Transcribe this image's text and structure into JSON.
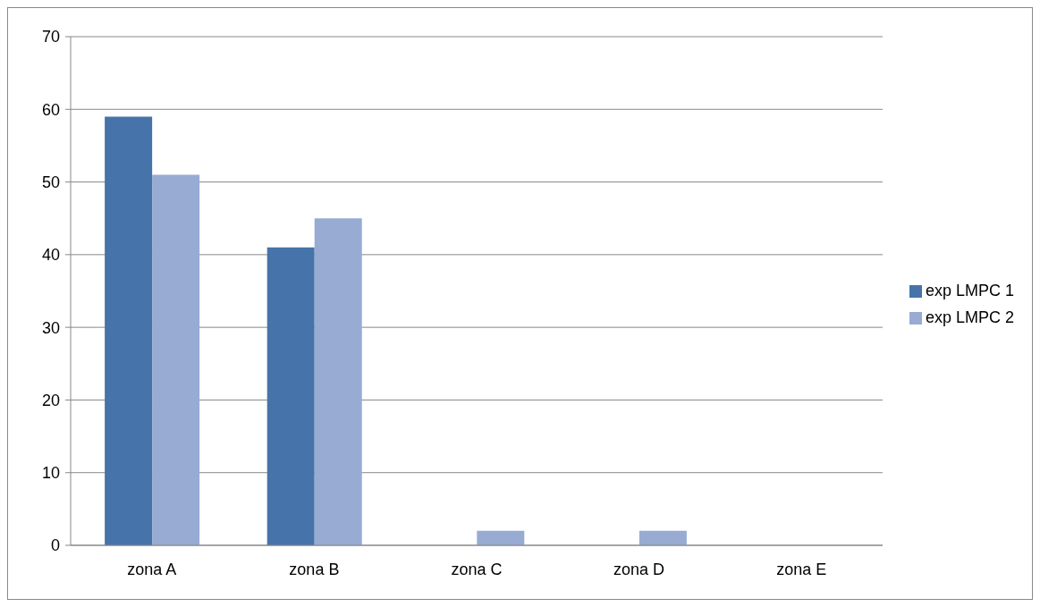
{
  "chart_data": {
    "type": "bar",
    "categories": [
      "zona A",
      "zona B",
      "zona C",
      "zona D",
      "zona E"
    ],
    "series": [
      {
        "name": "exp LMPC 1",
        "color": "#4673a9",
        "values": [
          59,
          41,
          0,
          0,
          0
        ]
      },
      {
        "name": "exp LMPC 2",
        "color": "#97abd3",
        "values": [
          51,
          45,
          2,
          2,
          0
        ]
      }
    ],
    "ylim": [
      0,
      70
    ],
    "yticks": [
      0,
      10,
      20,
      30,
      40,
      50,
      60,
      70
    ],
    "grid": "y",
    "legend": "right"
  }
}
